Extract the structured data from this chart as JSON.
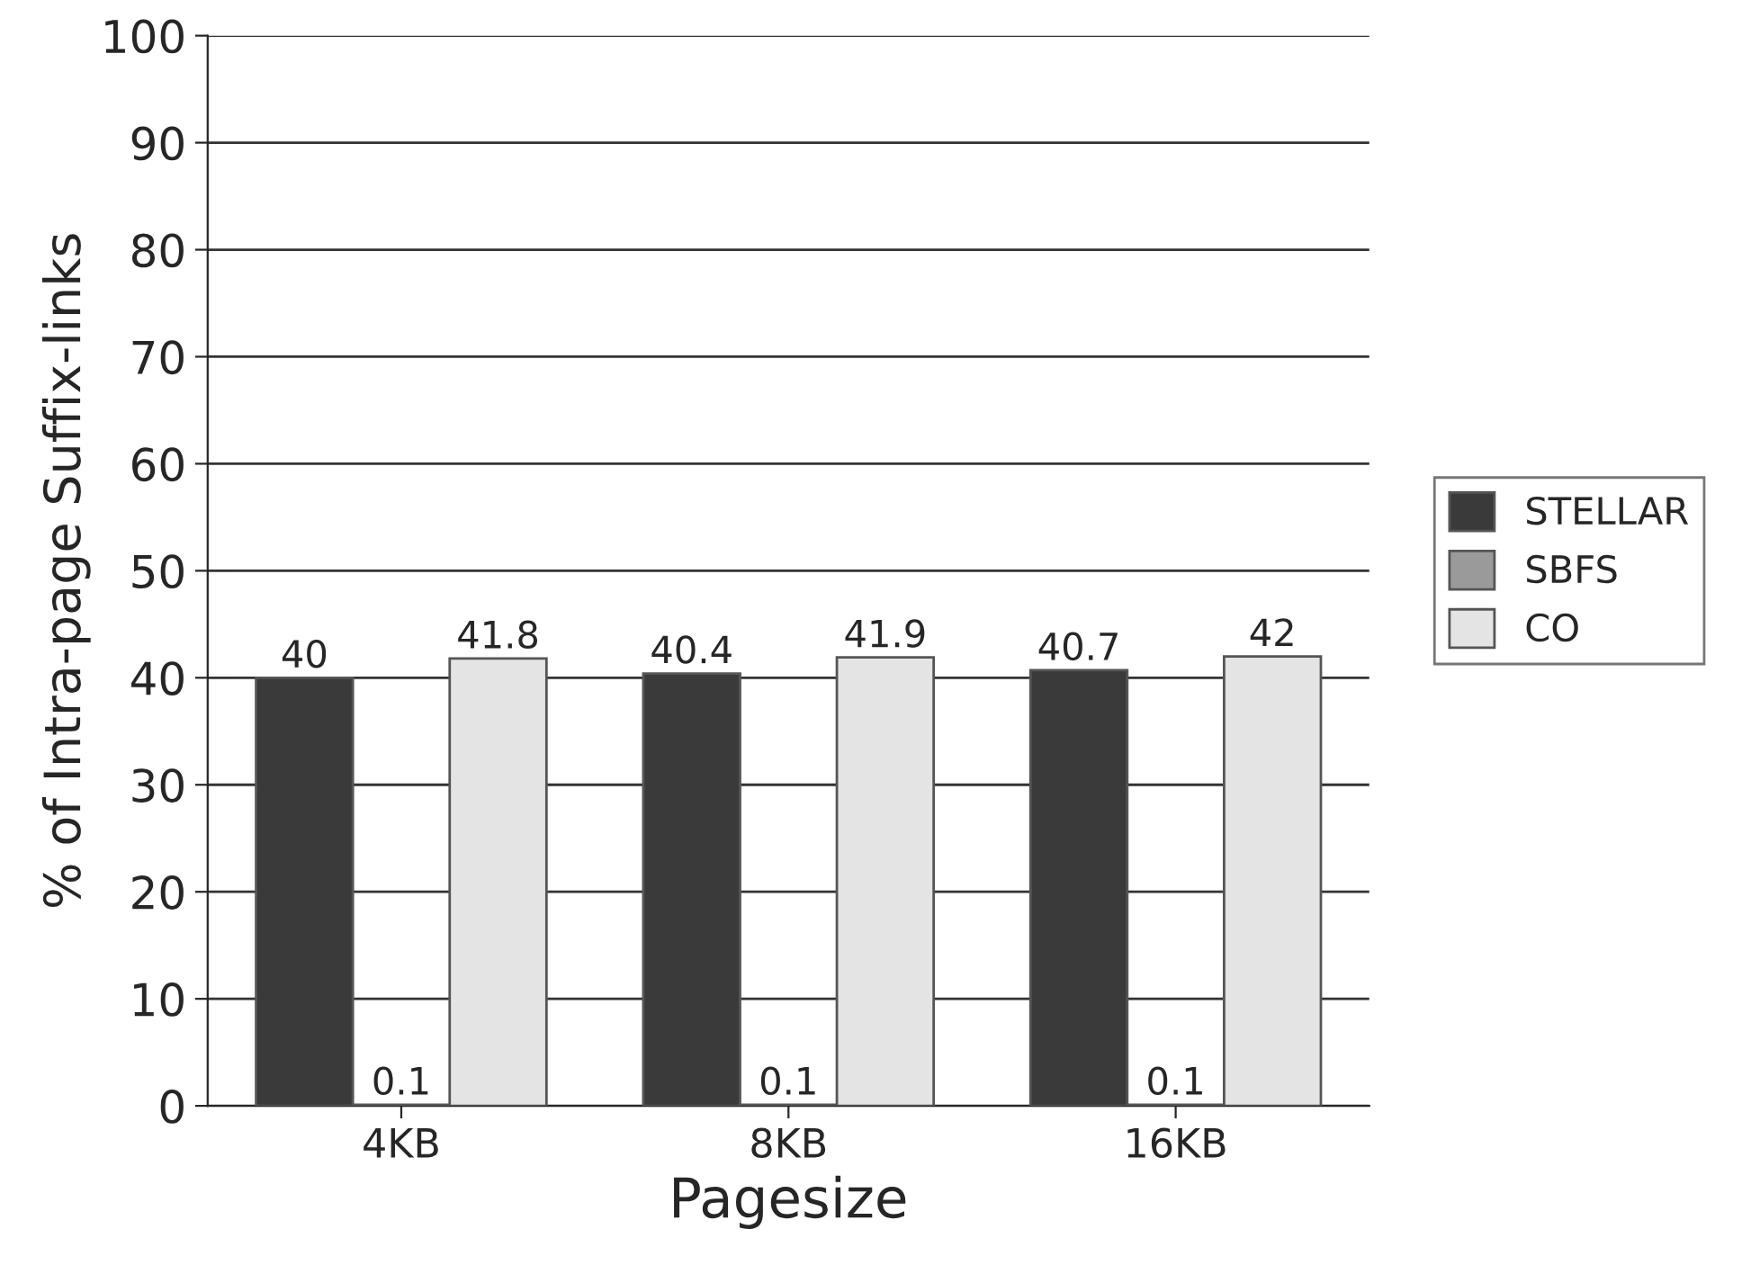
{
  "chart_data": {
    "type": "bar",
    "xlabel": "Pagesize",
    "ylabel": "% of Intra-page Suffix-links",
    "categories": [
      "4KB",
      "8KB",
      "16KB"
    ],
    "series": [
      {
        "name": "STELLAR",
        "color": "#3a3a3a",
        "values": [
          40,
          40.4,
          40.7
        ]
      },
      {
        "name": "SBFS",
        "color": "#9a9a9a",
        "values": [
          0.1,
          0.1,
          0.1
        ]
      },
      {
        "name": "CO",
        "color": "#e4e4e4",
        "values": [
          41.8,
          41.9,
          42
        ]
      }
    ],
    "ylim": [
      0,
      100
    ],
    "yticks": [
      0,
      10,
      20,
      30,
      40,
      50,
      60,
      70,
      80,
      90,
      100
    ],
    "grid": "y",
    "legend": "right",
    "data_labels": true
  }
}
